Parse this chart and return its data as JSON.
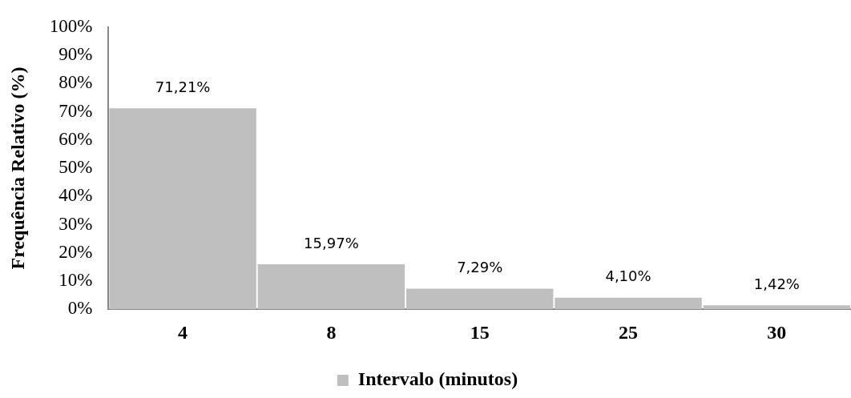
{
  "chart_data": {
    "type": "bar",
    "ylabel": "Frequência Relativo (%)",
    "categories": [
      "4",
      "8",
      "15",
      "25",
      "30"
    ],
    "series": [
      {
        "name": "Intervalo (minutos)",
        "color": "#bfbfbf",
        "values": [
          71.21,
          15.97,
          7.29,
          4.1,
          1.42
        ],
        "value_labels": [
          "71,21%",
          "15,97%",
          "7,29%",
          "4,10%",
          "1,42%"
        ]
      }
    ],
    "ylim": [
      0,
      100
    ],
    "yticks": [
      {
        "value": 0,
        "label": "0%"
      },
      {
        "value": 10,
        "label": "10%"
      },
      {
        "value": 20,
        "label": "20%"
      },
      {
        "value": 30,
        "label": "30%"
      },
      {
        "value": 40,
        "label": "40%"
      },
      {
        "value": 50,
        "label": "50%"
      },
      {
        "value": 60,
        "label": "60%"
      },
      {
        "value": 70,
        "label": "70%"
      },
      {
        "value": 80,
        "label": "80%"
      },
      {
        "value": 90,
        "label": "90%"
      },
      {
        "value": 100,
        "label": "100%"
      }
    ],
    "grid": false,
    "legend": "bottom"
  }
}
